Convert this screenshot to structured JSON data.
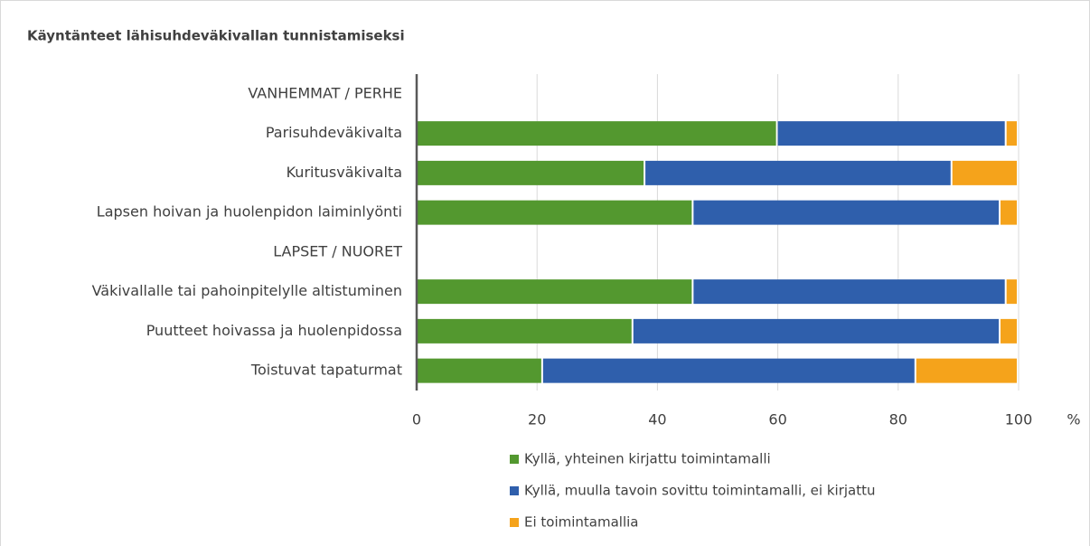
{
  "chart_data": {
    "type": "stacked-barh",
    "title": "Käyntänteet lähisuhdeväkivallan tunnistamiseksi",
    "x_label": "%",
    "categories": [
      "VANHEMMAT / PERHE",
      "Parisuhdeväkivalta",
      "Kuritusväkivalta",
      "Lapsen hoivan ja huolenpidon laiminlyönti",
      "LAPSET / NUORET",
      "Väkivallalle tai pahoinpitelylle altistuminen",
      "Puutteet hoivassa ja huolenpidossa",
      "Toistuvat tapaturmat"
    ],
    "series": [
      {
        "name": "Kyllä, yhteinen kirjattu toimintamalli",
        "color": "#53982f",
        "values": [
          null,
          60,
          38,
          46,
          null,
          46,
          36,
          21
        ]
      },
      {
        "name": "Kyllä, muulla tavoin sovittu toimintamalli, ei kirjattu",
        "color": "#2f5fac",
        "values": [
          null,
          38,
          51,
          51,
          null,
          52,
          61,
          62
        ]
      },
      {
        "name": "Ei toimintamallia",
        "color": "#f5a31b",
        "values": [
          null,
          2,
          11,
          3,
          null,
          2,
          3,
          17
        ]
      }
    ],
    "xlim": [
      0,
      100
    ],
    "xticks": [
      0,
      20,
      40,
      60,
      80,
      100
    ],
    "grid": true
  }
}
